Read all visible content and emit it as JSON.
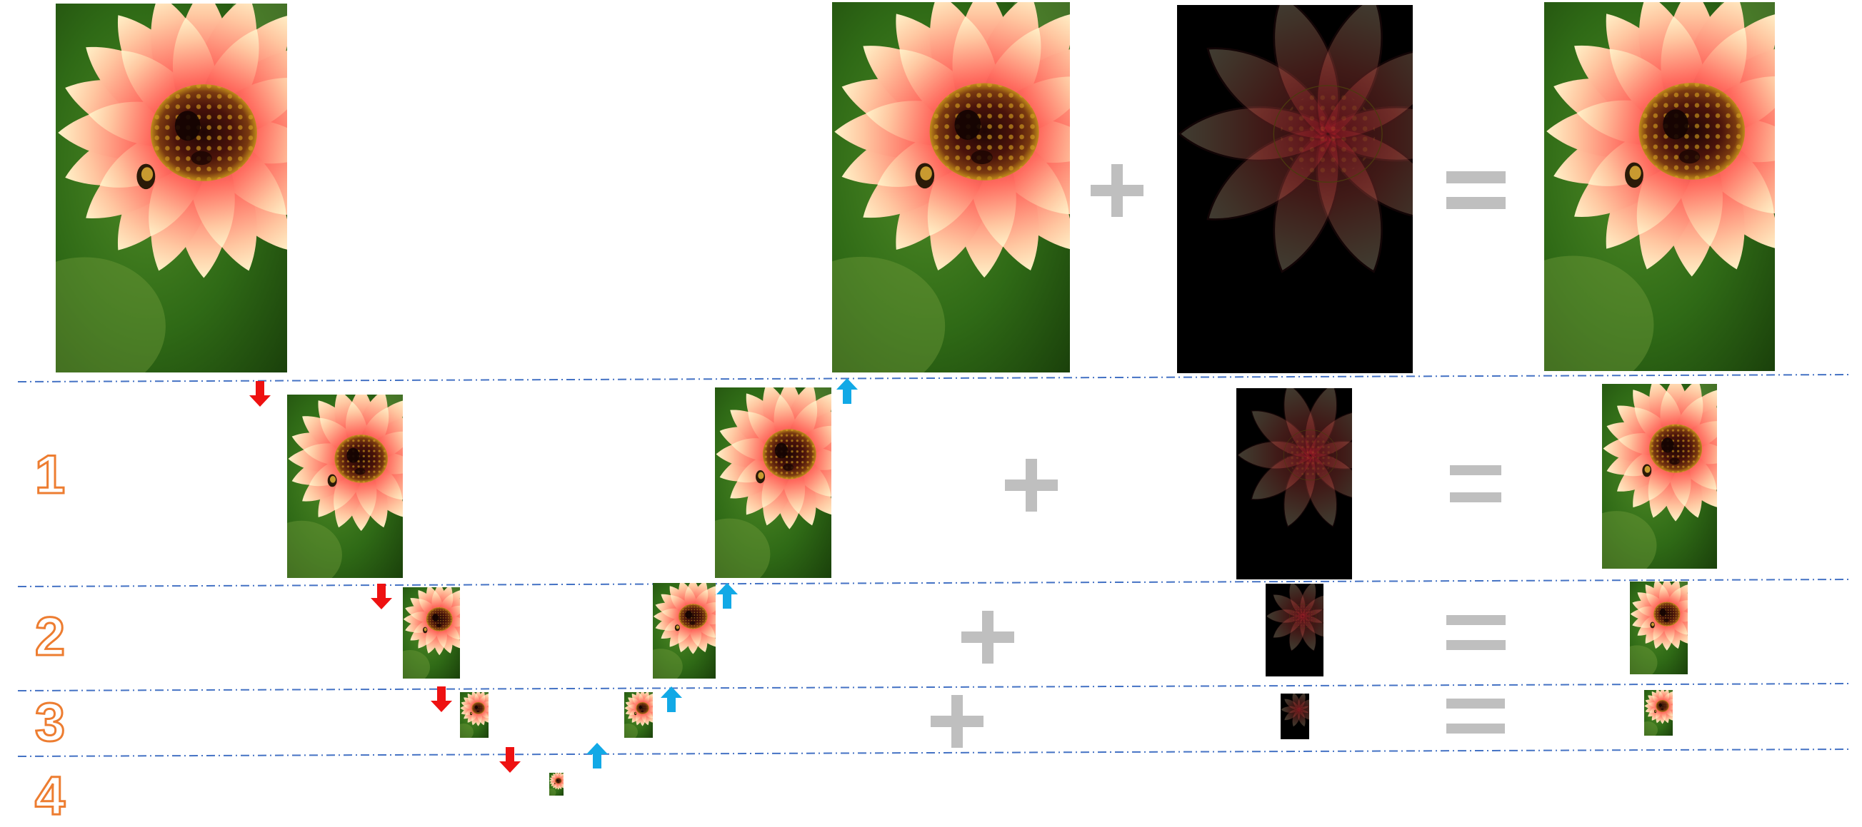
{
  "diagram": {
    "levels": [
      {
        "label": "1"
      },
      {
        "label": "2"
      },
      {
        "label": "3"
      },
      {
        "label": "4"
      }
    ],
    "operators": {
      "plus": "+",
      "equals": "="
    },
    "colors": {
      "down_arrow": "#ee1111",
      "up_arrow": "#12a9e6",
      "separator": "#4472c4",
      "operator": "#bfbfbf",
      "level_label": "#ed7d31",
      "residual_background": "#000000"
    },
    "icons": {
      "down_arrow": "arrow-down-icon",
      "up_arrow": "arrow-up-icon",
      "plus": "plus-icon",
      "equals": "equals-icon"
    }
  }
}
